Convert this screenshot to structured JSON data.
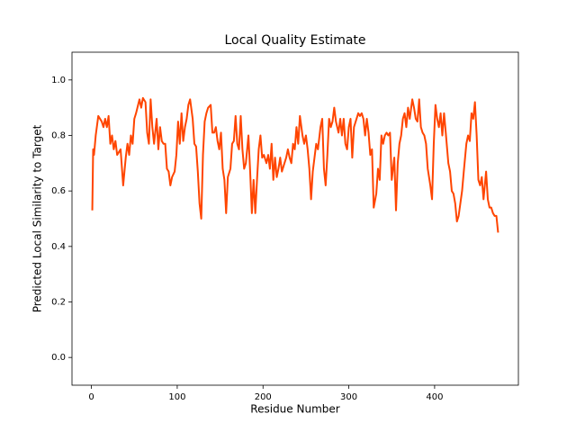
{
  "chart_data": {
    "type": "line",
    "title": "Local Quality Estimate",
    "x_label": "Residue Number",
    "y_label": "Predicted Local Similarity to Target",
    "xlim": [
      -22.65,
      497.65
    ],
    "ylim": [
      -0.1,
      1.1
    ],
    "xticks": [
      0,
      100,
      200,
      300,
      400
    ],
    "yticks": [
      {
        "value": 0,
        "label": "0.0"
      },
      {
        "value": 0.2,
        "label": "0.2"
      },
      {
        "value": 0.4,
        "label": "0.4"
      },
      {
        "value": 0.6,
        "label": "0.6"
      },
      {
        "value": 0.8,
        "label": "0.8"
      },
      {
        "value": 1.0,
        "label": "1.0"
      }
    ],
    "series": [
      {
        "color": "#ff4500",
        "x": [
          1,
          2,
          3,
          5,
          8,
          12,
          14,
          16,
          18,
          20,
          22,
          24,
          26,
          28,
          30,
          34,
          37,
          40,
          42,
          44,
          46,
          48,
          50,
          52,
          56,
          58,
          60,
          63,
          65,
          67,
          69,
          71,
          73,
          76,
          78,
          80,
          82,
          84,
          86,
          88,
          90,
          92,
          94,
          97,
          99,
          101,
          103,
          105,
          107,
          109,
          111,
          113,
          115,
          118,
          120,
          122,
          124,
          126,
          128,
          130,
          132,
          134,
          136,
          139,
          141,
          143,
          145,
          147,
          149,
          151,
          153,
          155,
          157,
          159,
          162,
          164,
          166,
          168,
          170,
          172,
          174,
          176,
          178,
          180,
          183,
          185,
          187,
          189,
          191,
          193,
          195,
          197,
          199,
          201,
          204,
          206,
          208,
          210,
          212,
          214,
          216,
          218,
          220,
          222,
          225,
          227,
          229,
          231,
          233,
          235,
          237,
          239,
          241,
          243,
          246,
          248,
          250,
          252,
          254,
          256,
          258,
          260,
          262,
          264,
          267,
          269,
          271,
          273,
          275,
          277,
          279,
          281,
          283,
          285,
          288,
          290,
          292,
          294,
          296,
          298,
          300,
          302,
          304,
          306,
          308,
          311,
          313,
          315,
          317,
          319,
          321,
          323,
          325,
          327,
          329,
          332,
          334,
          336,
          338,
          340,
          342,
          344,
          346,
          348,
          350,
          353,
          355,
          357,
          359,
          361,
          363,
          365,
          367,
          369,
          371,
          374,
          376,
          378,
          380,
          382,
          384,
          386,
          388,
          390,
          392,
          395,
          397,
          399,
          401,
          403,
          405,
          407,
          409,
          411,
          413,
          416,
          418,
          420,
          422,
          424,
          426,
          428,
          430,
          432,
          434,
          437,
          439,
          441,
          443,
          445,
          447,
          449,
          451,
          453,
          455,
          457,
          460,
          462,
          464,
          466,
          468,
          470,
          472,
          474
        ],
        "values": [
          0.53,
          0.75,
          0.73,
          0.8,
          0.87,
          0.85,
          0.83,
          0.86,
          0.83,
          0.87,
          0.77,
          0.8,
          0.75,
          0.78,
          0.73,
          0.75,
          0.62,
          0.72,
          0.77,
          0.73,
          0.8,
          0.77,
          0.86,
          0.88,
          0.93,
          0.9,
          0.935,
          0.92,
          0.81,
          0.77,
          0.93,
          0.83,
          0.77,
          0.86,
          0.75,
          0.83,
          0.78,
          0.77,
          0.77,
          0.68,
          0.67,
          0.62,
          0.65,
          0.67,
          0.73,
          0.85,
          0.77,
          0.88,
          0.78,
          0.83,
          0.86,
          0.91,
          0.93,
          0.86,
          0.77,
          0.76,
          0.67,
          0.555,
          0.5,
          0.73,
          0.85,
          0.88,
          0.9,
          0.91,
          0.81,
          0.81,
          0.83,
          0.78,
          0.75,
          0.81,
          0.68,
          0.64,
          0.52,
          0.65,
          0.68,
          0.77,
          0.78,
          0.87,
          0.77,
          0.75,
          0.87,
          0.75,
          0.68,
          0.7,
          0.8,
          0.67,
          0.52,
          0.64,
          0.52,
          0.64,
          0.75,
          0.8,
          0.72,
          0.73,
          0.7,
          0.73,
          0.68,
          0.77,
          0.64,
          0.72,
          0.65,
          0.68,
          0.72,
          0.67,
          0.7,
          0.72,
          0.75,
          0.72,
          0.7,
          0.77,
          0.75,
          0.83,
          0.77,
          0.87,
          0.8,
          0.77,
          0.8,
          0.75,
          0.68,
          0.57,
          0.67,
          0.72,
          0.77,
          0.75,
          0.83,
          0.86,
          0.68,
          0.62,
          0.73,
          0.86,
          0.83,
          0.85,
          0.9,
          0.85,
          0.81,
          0.86,
          0.8,
          0.86,
          0.77,
          0.75,
          0.83,
          0.86,
          0.72,
          0.83,
          0.85,
          0.88,
          0.87,
          0.88,
          0.86,
          0.8,
          0.86,
          0.81,
          0.73,
          0.75,
          0.54,
          0.59,
          0.68,
          0.64,
          0.8,
          0.77,
          0.8,
          0.81,
          0.8,
          0.81,
          0.64,
          0.72,
          0.53,
          0.7,
          0.77,
          0.8,
          0.86,
          0.88,
          0.83,
          0.9,
          0.86,
          0.93,
          0.9,
          0.86,
          0.85,
          0.93,
          0.83,
          0.81,
          0.8,
          0.77,
          0.68,
          0.62,
          0.57,
          0.77,
          0.91,
          0.86,
          0.83,
          0.88,
          0.8,
          0.88,
          0.81,
          0.7,
          0.67,
          0.6,
          0.59,
          0.555,
          0.49,
          0.51,
          0.555,
          0.6,
          0.67,
          0.77,
          0.8,
          0.78,
          0.88,
          0.86,
          0.92,
          0.8,
          0.64,
          0.62,
          0.65,
          0.57,
          0.67,
          0.57,
          0.54,
          0.54,
          0.52,
          0.51,
          0.51,
          0.45
        ]
      }
    ]
  }
}
